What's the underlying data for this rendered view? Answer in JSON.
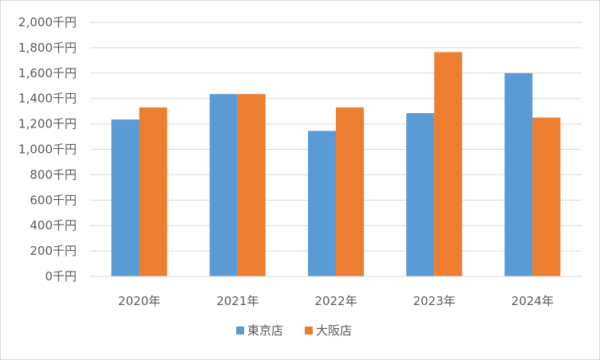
{
  "chart_data": {
    "type": "bar",
    "categories": [
      "2020年",
      "2021年",
      "2022年",
      "2023年",
      "2024年"
    ],
    "series": [
      {
        "name": "東京店",
        "values": [
          1235,
          1435,
          1145,
          1285,
          1600
        ],
        "color": "#5B9BD5"
      },
      {
        "name": "大阪店",
        "values": [
          1330,
          1435,
          1330,
          1765,
          1250
        ],
        "color": "#ED7D31"
      }
    ],
    "y_tick_labels": [
      "0千円",
      "200千円",
      "400千円",
      "600千円",
      "800千円",
      "1,000千円",
      "1,200千円",
      "1,400千円",
      "1,600千円",
      "1,800千円",
      "2,000千円"
    ],
    "ylim": [
      0,
      2000
    ],
    "y_step": 200,
    "grid": true,
    "legend_position": "bottom"
  }
}
